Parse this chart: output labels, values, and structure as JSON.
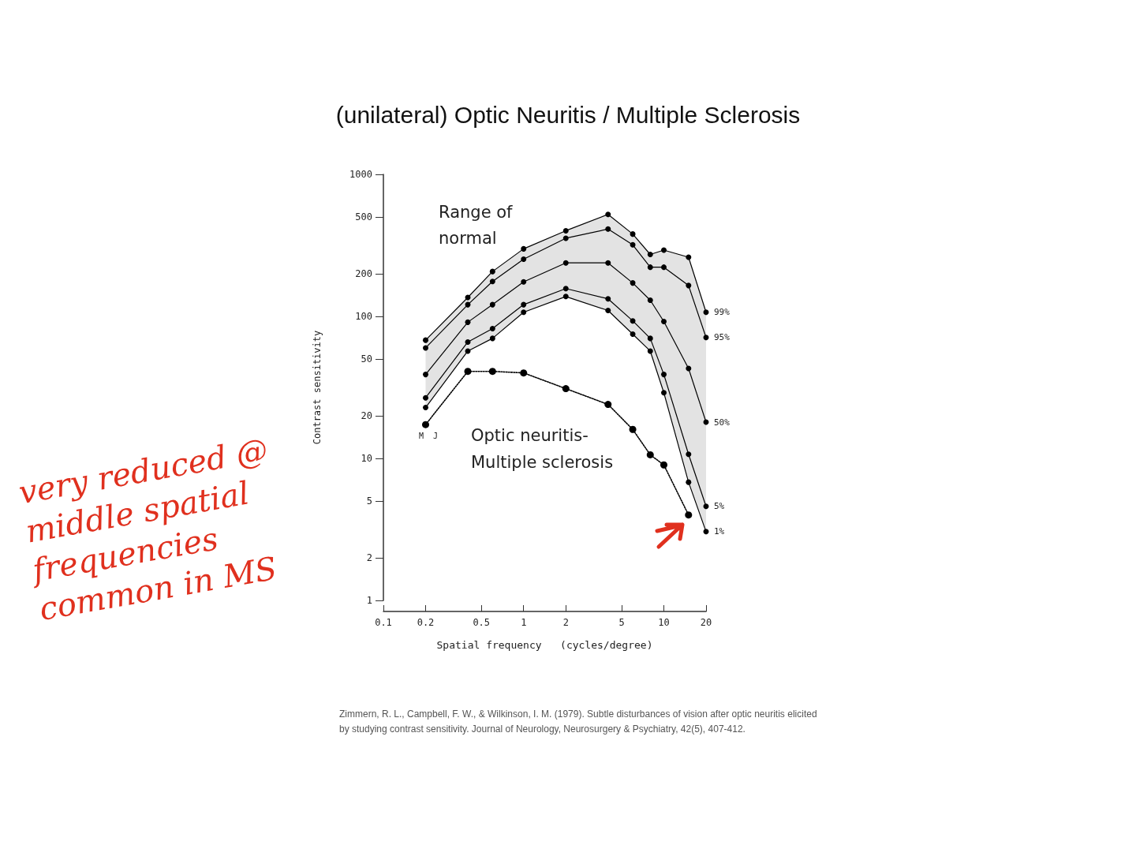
{
  "chart_data": {
    "type": "line",
    "title": "(unilateral) Optic Neuritis / Multiple Sclerosis",
    "xlabel": "Spatial frequency   (cycles/degree)",
    "ylabel": "Contrast sensitivity",
    "x": [
      0.2,
      0.4,
      0.6,
      1,
      2,
      4,
      6,
      8,
      10,
      15,
      20
    ],
    "log": "xy",
    "xlim": [
      0.1,
      20
    ],
    "xticks": [
      0.1,
      0.2,
      0.5,
      1,
      2,
      5,
      10,
      20
    ],
    "ylim": [
      1,
      1000
    ],
    "yticks": [
      1,
      2,
      5,
      10,
      20,
      50,
      100,
      200,
      500,
      1000
    ],
    "grid": false,
    "legend": false,
    "marker": "circle",
    "line_style": "solid",
    "series": [
      {
        "name": "99%",
        "color": "#000000",
        "values": [
          68,
          136,
          207,
          299,
          401,
          523,
          380,
          273,
          293,
          261,
          107
        ]
      },
      {
        "name": "95%",
        "color": "#000000",
        "values": [
          60,
          121,
          176,
          253,
          355,
          412,
          319,
          222,
          222,
          165,
          71
        ]
      },
      {
        "name": "50%",
        "color": "#000000",
        "values": [
          39,
          91,
          121,
          175,
          238,
          238,
          172,
          130,
          92,
          43,
          18
        ],
        "lower": [
          22.8,
          57,
          70,
          107,
          138,
          110,
          75,
          57,
          29,
          6.8,
          3.05
        ],
        "upper": [
          68,
          136,
          207,
          299,
          401,
          523,
          380,
          273,
          293,
          261,
          107
        ]
      },
      {
        "name": "5%",
        "color": "#000000",
        "values": [
          26.7,
          66,
          82,
          121,
          157,
          133,
          93,
          70,
          39,
          10.7,
          4.6
        ]
      },
      {
        "name": "1%",
        "color": "#000000",
        "values": [
          22.8,
          57,
          70,
          107,
          138,
          110,
          75,
          57,
          29,
          6.8,
          3.05
        ]
      },
      {
        "color": "#000000",
        "line_style": "dotted",
        "values": [
          17.3,
          41,
          41,
          40,
          31,
          24,
          16,
          10.6,
          9,
          4.0,
          null
        ]
      }
    ],
    "annotations": [
      "Range of normal",
      "Optic neuritis-Multiple sclerosis",
      "M  J",
      "very reduced @ middle spatial frequencies common in MS",
      "Zimmern, R. L., Campbell, F. W., & Wilkinson, I. M. (1979). Subtle disturbances of vision after optic neuritis elicited by studying contrast sensitivity. Journal of Neurology, Neurosurgery & Psychiatry, 42(5), 407-412."
    ]
  }
}
